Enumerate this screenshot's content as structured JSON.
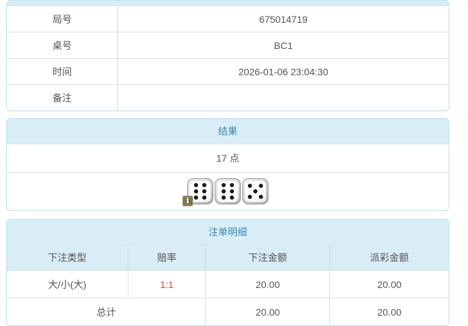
{
  "info_table": {
    "rows": [
      {
        "label": "局号",
        "value": "675014719"
      },
      {
        "label": "桌号",
        "value": "BC1"
      },
      {
        "label": "时间",
        "value": "2026-01-06 23:04:30"
      },
      {
        "label": "备注",
        "value": ""
      }
    ]
  },
  "result": {
    "title": "结果",
    "points": "17 点",
    "dice": {
      "values": [
        6,
        6,
        5
      ]
    },
    "info_badge": "i"
  },
  "bets": {
    "title": "注单明细",
    "columns": [
      "下注类型",
      "赔率",
      "下注金额",
      "派彩金额"
    ],
    "rows": [
      {
        "type": "大/小(大)",
        "odds": "1:1",
        "amount": "20.00",
        "payout": "20.00"
      }
    ],
    "total": {
      "label": "总计",
      "amount": "20.00",
      "payout": "20.00"
    }
  },
  "colors": {
    "accent_bg": "#d9edf7",
    "accent_text": "#3a87ad",
    "odds_red": "#e4393c",
    "panel_border": "#bee3ef"
  }
}
